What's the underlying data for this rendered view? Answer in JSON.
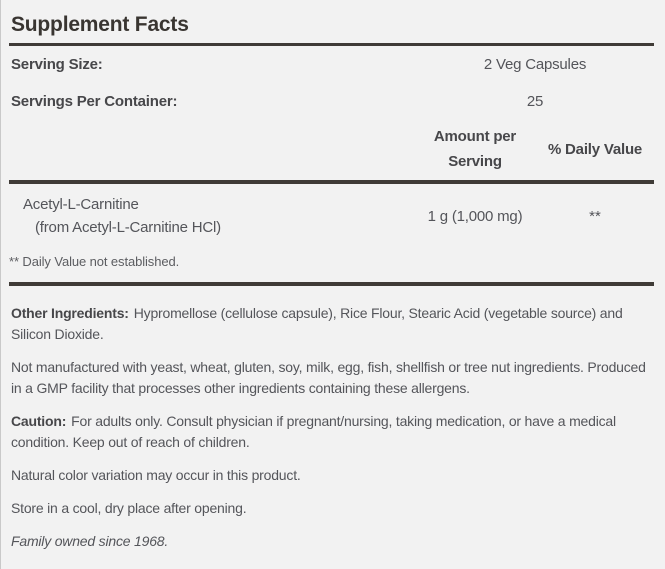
{
  "panel": {
    "title": "Supplement Facts",
    "serving_rows": [
      {
        "label": "Serving Size:",
        "value": "2 Veg Capsules"
      },
      {
        "label": "Servings Per Container:",
        "value": "25"
      }
    ],
    "column_headers": {
      "amount": "Amount per Serving",
      "daily_value": "% Daily Value"
    },
    "ingredients": [
      {
        "name": "Acetyl-L-Carnitine",
        "detail": "(from Acetyl-L-Carnitine HCl)",
        "amount": "1 g (1,000 mg)",
        "daily_value": "**"
      }
    ],
    "footnote": "** Daily Value not established.",
    "paragraphs": [
      {
        "lead": "Other Ingredients:",
        "text": "Hypromellose (cellulose capsule), Rice Flour, Stearic Acid (vegetable source) and Silicon Dioxide."
      },
      {
        "lead": "",
        "text": "Not manufactured with yeast, wheat, gluten, soy, milk, egg, fish, shellfish or tree nut ingredients. Produced in a GMP facility that processes other ingredients containing these allergens."
      },
      {
        "lead": "Caution:",
        "text": "For adults only. Consult physician if pregnant/nursing, taking medication, or have a medical condition. Keep out of reach of children."
      },
      {
        "lead": "",
        "text": "Natural color variation may occur in this product."
      },
      {
        "lead": "",
        "text": "Store in a cool, dry place after opening."
      },
      {
        "lead": "",
        "text": "Family owned since 1968."
      }
    ],
    "colors": {
      "background": "#f2f2f2",
      "rule": "#3f3b37",
      "title_text": "#393531",
      "body_text": "#54555a"
    }
  }
}
